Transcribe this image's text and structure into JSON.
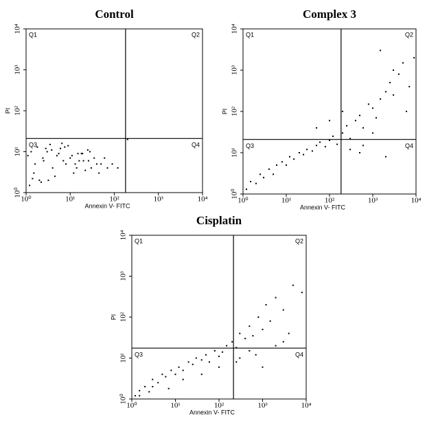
{
  "chart_data": [
    {
      "type": "scatter",
      "title": "Control",
      "xlabel": "Annexin V- FITC",
      "ylabel": "PI",
      "xscale": "log",
      "yscale": "log",
      "xlim": [
        1,
        10000
      ],
      "ylim": [
        1,
        10000
      ],
      "xticks": [
        {
          "value": 1,
          "label": "10⁰"
        },
        {
          "value": 10,
          "label": "10¹"
        },
        {
          "value": 100,
          "label": "10²"
        },
        {
          "value": 1000,
          "label": "10³"
        },
        {
          "value": 10000,
          "label": "10⁴"
        }
      ],
      "yticks": [
        {
          "value": 1,
          "label": "10⁰"
        },
        {
          "value": 10,
          "label": "10¹"
        },
        {
          "value": 100,
          "label": "10²"
        },
        {
          "value": 1000,
          "label": "10³"
        },
        {
          "value": 10000,
          "label": "10⁴"
        }
      ],
      "gate_x": 180,
      "gate_y": 21,
      "quadrants": [
        "Q1",
        "Q2",
        "Q3",
        "Q4"
      ],
      "color": "#000000",
      "x": [
        1.2,
        1.5,
        2,
        2.5,
        3,
        4,
        5,
        6,
        8,
        10,
        12,
        15,
        20,
        25,
        30,
        40,
        1.1,
        1.8,
        2.2,
        3.5,
        4.5,
        7,
        9,
        14,
        18,
        22,
        35,
        50,
        70,
        1.3,
        1.6,
        2.8,
        3.2,
        5.5,
        6.5,
        11,
        16,
        28,
        45,
        120,
        1.4,
        2.4,
        3.8,
        7.5,
        13,
        19,
        26,
        60,
        90,
        200
      ],
      "y": [
        1.5,
        3,
        2,
        6,
        10,
        4,
        8,
        12,
        5,
        7,
        3,
        9,
        6,
        11,
        4,
        5,
        8,
        13,
        1.8,
        15,
        2.5,
        6,
        14,
        4,
        9,
        3.5,
        7,
        5,
        4,
        10,
        5,
        12,
        2,
        9,
        16,
        8,
        6,
        10,
        3,
        4,
        2.2,
        7,
        11,
        13,
        5,
        9,
        6,
        7,
        5,
        20
      ]
    },
    {
      "type": "scatter",
      "title": "Complex 3",
      "xlabel": "Annexin V- FITC",
      "ylabel": "PI",
      "xscale": "log",
      "yscale": "log",
      "xlim": [
        1,
        10000
      ],
      "ylim": [
        1,
        10000
      ],
      "xticks": [
        {
          "value": 1,
          "label": "10⁰"
        },
        {
          "value": 10,
          "label": "10¹"
        },
        {
          "value": 100,
          "label": "10²"
        },
        {
          "value": 1000,
          "label": "10³"
        },
        {
          "value": 10000,
          "label": "10⁴"
        }
      ],
      "yticks": [
        {
          "value": 1,
          "label": "10⁰"
        },
        {
          "value": 10,
          "label": "10¹"
        },
        {
          "value": 100,
          "label": "10²"
        },
        {
          "value": 1000,
          "label": "10³"
        },
        {
          "value": 10000,
          "label": "10⁴"
        }
      ],
      "gate_x": 185,
      "gate_y": 21,
      "quadrants": [
        "Q1",
        "Q2",
        "Q3",
        "Q4"
      ],
      "color": "#000000",
      "x": [
        1.2,
        1.5,
        2,
        2.5,
        3,
        4,
        5,
        6,
        8,
        10,
        12,
        15,
        20,
        25,
        30,
        40,
        50,
        60,
        80,
        100,
        120,
        150,
        200,
        250,
        300,
        400,
        500,
        600,
        800,
        1000,
        1200,
        1500,
        2000,
        2500,
        3000,
        4000,
        5000,
        7000,
        9000,
        300,
        600,
        1000,
        2000,
        3000,
        50,
        100,
        200,
        500,
        1500,
        6000
      ],
      "y": [
        1.3,
        2,
        1.8,
        3,
        2.5,
        4,
        3,
        5,
        6,
        5,
        8,
        7,
        10,
        9,
        12,
        11,
        15,
        18,
        14,
        20,
        25,
        16,
        30,
        45,
        22,
        60,
        80,
        40,
        150,
        120,
        70,
        200,
        300,
        500,
        250,
        800,
        1500,
        400,
        2000,
        12,
        15,
        30,
        8,
        1000,
        40,
        60,
        100,
        10,
        3000,
        100
      ]
    },
    {
      "type": "scatter",
      "title": "Cisplatin",
      "xlabel": "Annexin V- FITC",
      "ylabel": "PI",
      "xscale": "log",
      "yscale": "log",
      "xlim": [
        1,
        10000
      ],
      "ylim": [
        1,
        10000
      ],
      "xticks": [
        {
          "value": 1,
          "label": "10⁰"
        },
        {
          "value": 10,
          "label": "10¹"
        },
        {
          "value": 100,
          "label": "10²"
        },
        {
          "value": 1000,
          "label": "10³"
        },
        {
          "value": 10000,
          "label": "10⁴"
        }
      ],
      "yticks": [
        {
          "value": 1,
          "label": "10⁰"
        },
        {
          "value": 10,
          "label": "10¹"
        },
        {
          "value": 100,
          "label": "10²"
        },
        {
          "value": 1000,
          "label": "10³"
        },
        {
          "value": 10000,
          "label": "10⁴"
        }
      ],
      "gate_x": 215,
      "gate_y": 17.5,
      "quadrants": [
        "Q1",
        "Q2",
        "Q3",
        "Q4"
      ],
      "color": "#000000",
      "x": [
        1.2,
        1.5,
        2,
        2.5,
        3,
        4,
        5,
        6,
        8,
        10,
        12,
        15,
        20,
        25,
        30,
        40,
        50,
        60,
        80,
        100,
        120,
        150,
        200,
        250,
        300,
        400,
        500,
        600,
        800,
        1000,
        1200,
        1500,
        2000,
        3000,
        5000,
        8000,
        1.5,
        3,
        7,
        15,
        40,
        100,
        300,
        700,
        2000,
        4000,
        250,
        500,
        1000,
        3000
      ],
      "y": [
        1.2,
        1.6,
        2,
        1.5,
        3,
        2.5,
        4,
        3.5,
        5,
        4,
        6,
        5,
        8,
        7,
        10,
        9,
        12,
        8,
        15,
        11,
        14,
        20,
        25,
        18,
        40,
        30,
        60,
        35,
        100,
        50,
        200,
        80,
        300,
        150,
        600,
        400,
        1.2,
        2,
        1.8,
        3,
        4,
        6,
        10,
        12,
        20,
        40,
        8,
        15,
        6,
        25
      ]
    }
  ]
}
